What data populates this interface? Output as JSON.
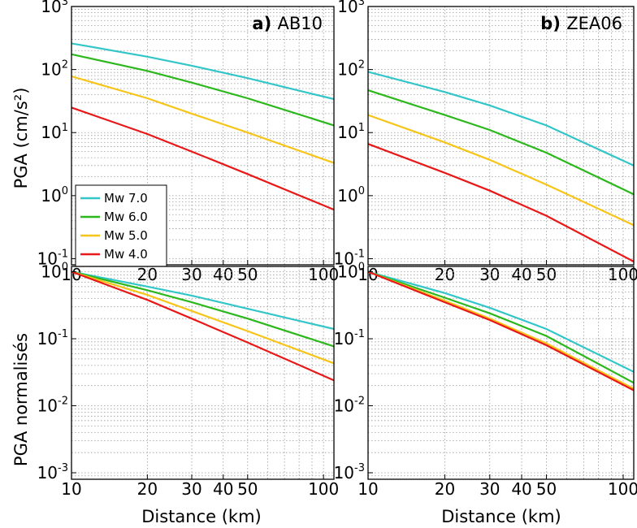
{
  "ylabel_top": "PGA (cm/s²)",
  "ylabel_bottom": "PGA normalisés",
  "xlabel": "Distance (km)",
  "x_tick_labels": [
    "10",
    "20",
    "30",
    "40",
    "50",
    "100"
  ],
  "x_ticks": [
    10,
    20,
    30,
    40,
    50,
    100
  ],
  "y_ticks_top": [
    {
      "base": "10",
      "exp": "-1"
    },
    {
      "base": "10",
      "exp": "0"
    },
    {
      "base": "10",
      "exp": "1"
    },
    {
      "base": "10",
      "exp": "2"
    },
    {
      "base": "10",
      "exp": "3"
    }
  ],
  "y_ticks_bottom": [
    {
      "base": "10",
      "exp": "-3"
    },
    {
      "base": "10",
      "exp": "-2"
    },
    {
      "base": "10",
      "exp": "-1"
    },
    {
      "base": "10",
      "exp": "0"
    }
  ],
  "colors": {
    "Mw 7.0": "#33c6c9",
    "Mw 6.0": "#2cb81c",
    "Mw 5.0": "#f7c418",
    "Mw 4.0": "#e81818"
  },
  "legend": [
    "Mw 7.0",
    "Mw 6.0",
    "Mw 5.0",
    "Mw 4.0"
  ],
  "chart_data": [
    {
      "type": "line",
      "panel": "top-left",
      "title_bold": "a)",
      "title": "AB10",
      "xlog": true,
      "ylog": true,
      "xlim": [
        10,
        110
      ],
      "ylim": [
        0.08,
        1000
      ],
      "grid": true,
      "legend_placement": "lower-left",
      "x": [
        10,
        20,
        30,
        50,
        110
      ],
      "series": [
        {
          "name": "Mw 7.0",
          "values": [
            260,
            160,
            115,
            73,
            34
          ]
        },
        {
          "name": "Mw 6.0",
          "values": [
            175,
            95,
            62,
            35,
            13
          ]
        },
        {
          "name": "Mw 5.0",
          "values": [
            78,
            35,
            20,
            10,
            3.3
          ]
        },
        {
          "name": "Mw 4.0",
          "values": [
            25,
            9.5,
            5,
            2.2,
            0.6
          ]
        }
      ]
    },
    {
      "type": "line",
      "panel": "top-right",
      "title_bold": "b)",
      "title": "ZEA06",
      "xlog": true,
      "ylog": true,
      "xlim": [
        10,
        110
      ],
      "ylim": [
        0.08,
        1000
      ],
      "grid": true,
      "x": [
        10,
        20,
        30,
        50,
        110
      ],
      "series": [
        {
          "name": "Mw 7.0",
          "values": [
            92,
            44,
            27,
            13,
            3
          ]
        },
        {
          "name": "Mw 6.0",
          "values": [
            47,
            19,
            11,
            4.8,
            1.05
          ]
        },
        {
          "name": "Mw 5.0",
          "values": [
            19,
            7,
            3.7,
            1.5,
            0.34
          ]
        },
        {
          "name": "Mw 4.0",
          "values": [
            6.6,
            2.3,
            1.2,
            0.48,
            0.09
          ]
        }
      ]
    },
    {
      "type": "line",
      "panel": "bottom-left",
      "xlog": true,
      "ylog": true,
      "xlim": [
        10,
        110
      ],
      "ylim": [
        0.0008,
        1.2
      ],
      "grid": true,
      "x": [
        10,
        20,
        30,
        50,
        110
      ],
      "series": [
        {
          "name": "Mw 7.0",
          "values": [
            1.0,
            0.6,
            0.44,
            0.28,
            0.14
          ]
        },
        {
          "name": "Mw 6.0",
          "values": [
            1.0,
            0.53,
            0.35,
            0.2,
            0.077
          ]
        },
        {
          "name": "Mw 5.0",
          "values": [
            1.0,
            0.45,
            0.26,
            0.13,
            0.043
          ]
        },
        {
          "name": "Mw 4.0",
          "values": [
            1.0,
            0.38,
            0.2,
            0.088,
            0.024
          ]
        }
      ]
    },
    {
      "type": "line",
      "panel": "bottom-right",
      "xlog": true,
      "ylog": true,
      "xlim": [
        10,
        110
      ],
      "ylim": [
        0.0008,
        1.2
      ],
      "grid": true,
      "x": [
        10,
        20,
        30,
        50,
        110
      ],
      "series": [
        {
          "name": "Mw 7.0",
          "values": [
            1.0,
            0.48,
            0.29,
            0.14,
            0.032
          ]
        },
        {
          "name": "Mw 6.0",
          "values": [
            1.0,
            0.41,
            0.24,
            0.11,
            0.022
          ]
        },
        {
          "name": "Mw 5.0",
          "values": [
            1.0,
            0.37,
            0.2,
            0.085,
            0.018
          ]
        },
        {
          "name": "Mw 4.0",
          "values": [
            1.0,
            0.35,
            0.19,
            0.08,
            0.017
          ]
        }
      ]
    }
  ]
}
